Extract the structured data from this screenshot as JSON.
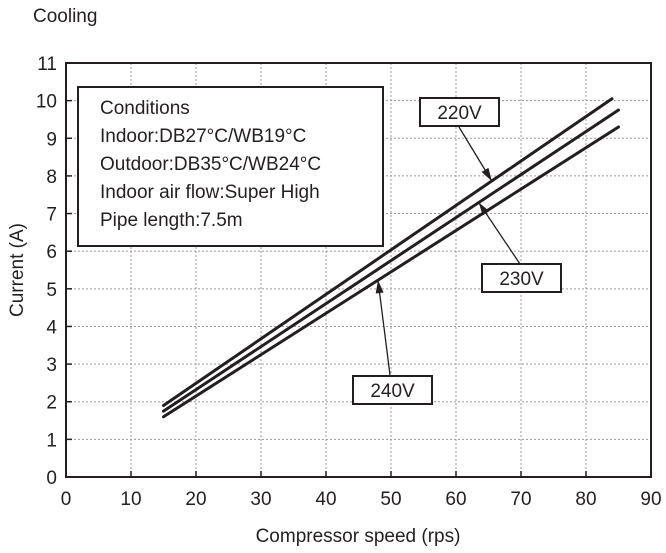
{
  "heading": "Cooling",
  "chart_data": {
    "type": "line",
    "title": "Cooling",
    "xlabel": "Compressor speed (rps)",
    "ylabel": "Current (A)",
    "xlim": [
      0,
      90
    ],
    "ylim": [
      0,
      11
    ],
    "xticks": [
      0,
      10,
      20,
      30,
      40,
      50,
      60,
      70,
      80,
      90
    ],
    "yticks": [
      0,
      1,
      2,
      3,
      4,
      5,
      6,
      7,
      8,
      9,
      10,
      11
    ],
    "grid": true,
    "series": [
      {
        "name": "220V",
        "x": [
          15,
          84
        ],
        "y": [
          1.9,
          10.05
        ]
      },
      {
        "name": "230V",
        "x": [
          15,
          85
        ],
        "y": [
          1.75,
          9.75
        ]
      },
      {
        "name": "240V",
        "x": [
          15,
          85
        ],
        "y": [
          1.6,
          9.3
        ]
      }
    ],
    "annotations": [
      {
        "label": "220V",
        "points_to_series": "220V",
        "at_x": 65.5
      },
      {
        "label": "230V",
        "points_to_series": "230V",
        "at_x": 63.5
      },
      {
        "label": "240V",
        "points_to_series": "240V",
        "at_x": 48
      }
    ],
    "conditions_box": {
      "title": "Conditions",
      "lines": [
        "Indoor:DB27°C/WB19°C",
        "Outdoor:DB35°C/WB24°C",
        "Indoor air flow:Super High",
        "Pipe length:7.5m"
      ]
    },
    "colors": {
      "line": "#231f20",
      "grid": "#9a9a9a"
    }
  }
}
